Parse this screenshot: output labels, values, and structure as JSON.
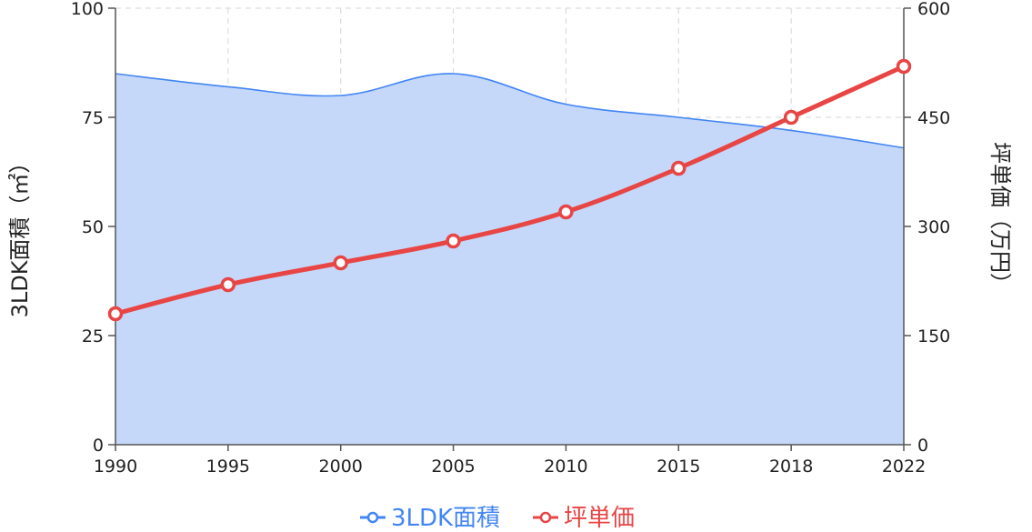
{
  "chart_data": {
    "type": "line",
    "x": [
      "1990",
      "1995",
      "2000",
      "2005",
      "2010",
      "2015",
      "2018",
      "2022"
    ],
    "series": [
      {
        "name": "3LDK面積",
        "axis": "left",
        "style": "area",
        "color": "#4285f4",
        "fill": "#c5d8fa",
        "values": [
          85,
          82,
          80,
          85,
          78,
          75,
          72,
          68
        ]
      },
      {
        "name": "坪単価",
        "axis": "right",
        "style": "line",
        "color": "#e84545",
        "values": [
          180,
          220,
          250,
          280,
          320,
          380,
          450,
          520
        ]
      }
    ],
    "y_left": {
      "label": "3LDK面積（㎡）",
      "range": [
        0,
        100
      ],
      "ticks": [
        "0",
        "25",
        "50",
        "75",
        "100"
      ]
    },
    "y_right": {
      "label": "坪単価（万円）",
      "range": [
        0,
        600
      ],
      "ticks": [
        "0",
        "150",
        "300",
        "450",
        "600"
      ]
    },
    "grid": true,
    "legend": "bottom-center"
  }
}
